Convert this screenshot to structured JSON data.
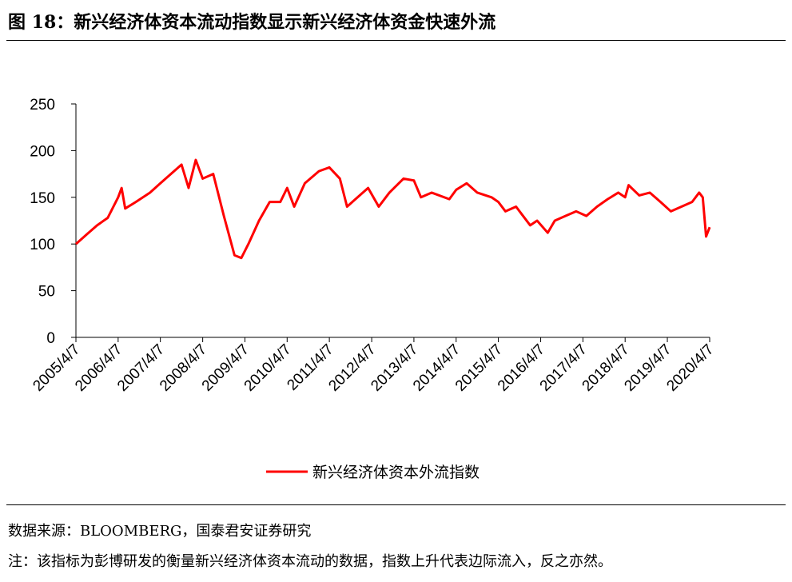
{
  "header": {
    "title": "图 18：新兴经济体资本流动指数显示新兴经济体资金快速外流"
  },
  "chart_data": {
    "type": "line",
    "x": [
      "2005/4/7",
      "2005/7/7",
      "2005/10/7",
      "2006/1/7",
      "2006/4/7",
      "2006/5/7",
      "2006/6/7",
      "2006/9/7",
      "2007/1/7",
      "2007/4/7",
      "2007/7/7",
      "2007/10/7",
      "2007/12/7",
      "2008/2/7",
      "2008/4/7",
      "2008/7/7",
      "2008/10/7",
      "2009/1/7",
      "2009/3/7",
      "2009/5/7",
      "2009/8/7",
      "2009/11/7",
      "2010/2/7",
      "2010/4/7",
      "2010/6/7",
      "2010/9/7",
      "2011/1/7",
      "2011/4/7",
      "2011/7/7",
      "2011/9/7",
      "2011/12/7",
      "2012/3/7",
      "2012/6/7",
      "2012/9/7",
      "2013/1/7",
      "2013/4/7",
      "2013/6/7",
      "2013/9/7",
      "2014/2/7",
      "2014/4/7",
      "2014/7/7",
      "2014/10/7",
      "2015/2/7",
      "2015/4/7",
      "2015/6/7",
      "2015/9/7",
      "2015/11/7",
      "2016/1/7",
      "2016/3/7",
      "2016/6/7",
      "2016/8/7",
      "2016/11/7",
      "2017/2/7",
      "2017/5/7",
      "2017/8/7",
      "2017/11/7",
      "2018/2/7",
      "2018/4/7",
      "2018/5/7",
      "2018/8/7",
      "2018/11/7",
      "2019/2/7",
      "2019/5/7",
      "2019/8/7",
      "2019/11/7",
      "2020/1/7",
      "2020/2/7",
      "2020/3/7",
      "2020/4/7"
    ],
    "series": [
      {
        "name": "新兴经济体资本外流指数",
        "color": "#ff0000",
        "values": [
          100,
          110,
          120,
          128,
          150,
          160,
          138,
          145,
          155,
          165,
          175,
          185,
          160,
          190,
          170,
          175,
          130,
          88,
          85,
          100,
          125,
          145,
          145,
          160,
          140,
          165,
          178,
          182,
          170,
          140,
          150,
          160,
          140,
          155,
          170,
          168,
          150,
          155,
          148,
          158,
          165,
          155,
          150,
          145,
          135,
          140,
          130,
          120,
          125,
          112,
          125,
          130,
          135,
          130,
          140,
          148,
          155,
          150,
          163,
          152,
          155,
          145,
          135,
          140,
          145,
          155,
          150,
          108,
          118
        ]
      }
    ],
    "ylim": [
      0,
      250
    ],
    "yticks": [
      0,
      50,
      100,
      150,
      200,
      250
    ],
    "xlim": [
      "2005/4/7",
      "2020/4/7"
    ],
    "xticks": [
      "2005/4/7",
      "2006/4/7",
      "2007/4/7",
      "2008/4/7",
      "2009/4/7",
      "2010/4/7",
      "2011/4/7",
      "2012/4/7",
      "2013/4/7",
      "2014/4/7",
      "2015/4/7",
      "2016/4/7",
      "2017/4/7",
      "2018/4/7",
      "2019/4/7",
      "2020/4/7"
    ],
    "legend": "bottom"
  },
  "footer": {
    "source": "数据来源：BLOOMBERG，国泰君安证券研究",
    "note": "注：该指标为彭博研发的衡量新兴经济体资本流动的数据，指数上升代表边际流入，反之亦然。"
  }
}
